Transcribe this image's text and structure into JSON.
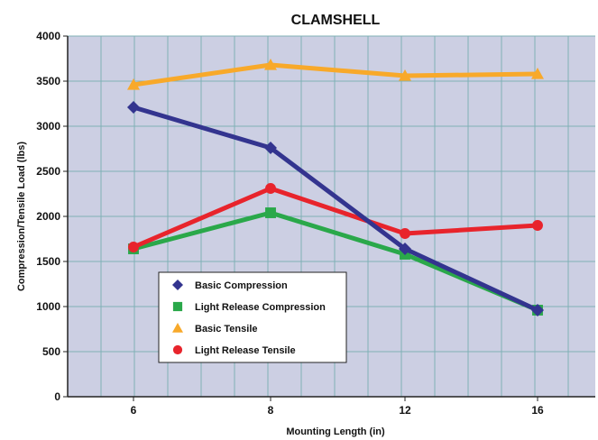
{
  "chart_data": {
    "type": "line",
    "title": "CLAMSHELL",
    "xlabel": "Mounting Length (in)",
    "ylabel": "Compression/Tensile Load (lbs)",
    "x": [
      6,
      8,
      12,
      16
    ],
    "x_tick_labels": [
      "6",
      "8",
      "12",
      "16"
    ],
    "ylim": [
      0,
      4000
    ],
    "y_ticks": [
      0,
      500,
      1000,
      1500,
      2000,
      2500,
      3000,
      3500,
      4000
    ],
    "y_tick_labels": [
      "0",
      "500",
      "1000",
      "1500",
      "2000",
      "2500",
      "3000",
      "3500",
      "4000"
    ],
    "grid": true,
    "legend_position": "lower-left",
    "plot_background": "#cccfe3",
    "grid_color": "#7fb0b6",
    "series": [
      {
        "name": "Basic Compression",
        "values": [
          3210,
          2760,
          1640,
          960
        ],
        "color": "#33348f",
        "marker": "diamond"
      },
      {
        "name": "Light Release Compression",
        "values": [
          1640,
          2040,
          1580,
          960
        ],
        "color": "#2aa84a",
        "marker": "square"
      },
      {
        "name": "Basic Tensile",
        "values": [
          3460,
          3680,
          3560,
          3580
        ],
        "color": "#f8a92a",
        "marker": "triangle"
      },
      {
        "name": "Light Release Tensile",
        "values": [
          1660,
          2310,
          1810,
          1900
        ],
        "color": "#e8242c",
        "marker": "circle"
      }
    ]
  }
}
